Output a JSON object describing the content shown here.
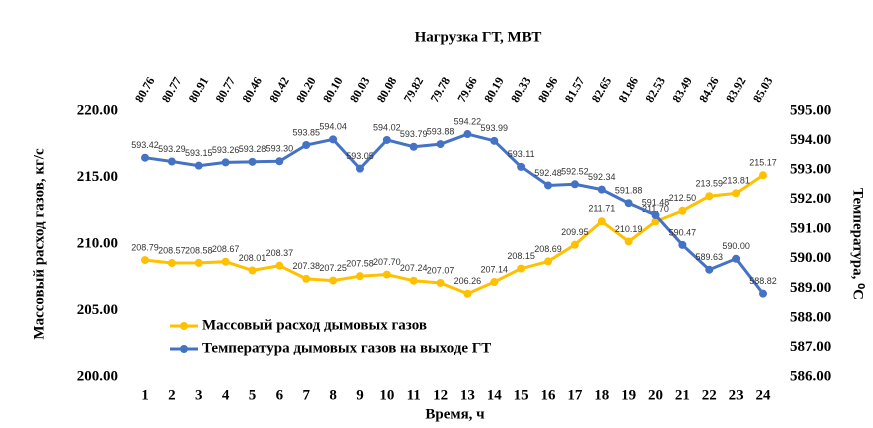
{
  "chart_data": {
    "type": "line",
    "title": "Нагрузка ГТ,  МВТ",
    "top_categories": [
      "80.76",
      "80.77",
      "80.91",
      "80.77",
      "80.46",
      "80.42",
      "80.20",
      "80.10",
      "80.03",
      "80.08",
      "79.82",
      "79.78",
      "79.66",
      "80.19",
      "80.33",
      "80.96",
      "81.57",
      "82.65",
      "81.86",
      "82.53",
      "83.49",
      "84.26",
      "83.92",
      "85.03"
    ],
    "categories": [
      "1",
      "2",
      "3",
      "4",
      "5",
      "6",
      "7",
      "8",
      "9",
      "10",
      "11",
      "12",
      "13",
      "14",
      "15",
      "16",
      "17",
      "18",
      "19",
      "20",
      "21",
      "22",
      "23",
      "24"
    ],
    "x_label": "Время, ч",
    "y_label": "Массовый расход газов, кг/с",
    "y2_label": "Температура, ⁰С",
    "ylim": [
      200,
      220
    ],
    "yticks": [
      {
        "value": 200,
        "label": "200.00"
      },
      {
        "value": 205,
        "label": "205.00"
      },
      {
        "value": 210,
        "label": "210.00"
      },
      {
        "value": 215,
        "label": "215.00"
      },
      {
        "value": 220,
        "label": "220.00"
      }
    ],
    "y2lim": [
      586,
      595
    ],
    "y2ticks": [
      {
        "value": 586,
        "label": "586.00"
      },
      {
        "value": 587,
        "label": "587.00"
      },
      {
        "value": 588,
        "label": "588.00"
      },
      {
        "value": 589,
        "label": "589.00"
      },
      {
        "value": 590,
        "label": "590.00"
      },
      {
        "value": 591,
        "label": "591.00"
      },
      {
        "value": 592,
        "label": "592.00"
      },
      {
        "value": 593,
        "label": "593.00"
      },
      {
        "value": 594,
        "label": "594.00"
      },
      {
        "value": 595,
        "label": "595.00"
      }
    ],
    "grid": false,
    "legend": "lower left",
    "series": [
      {
        "name": "Массовый расход дымовых газов",
        "color": "#ffc000",
        "values": [
          208.79,
          208.57,
          208.58,
          208.67,
          208.01,
          208.37,
          207.38,
          207.25,
          207.58,
          207.7,
          207.24,
          207.07,
          206.26,
          207.14,
          208.15,
          208.69,
          209.95,
          211.71,
          210.19,
          211.7,
          212.5,
          213.59,
          213.81,
          215.17
        ],
        "value_labels": [
          "208.79",
          "208.57",
          "208.58",
          "208.67",
          "208.01",
          "208.37",
          "207.38",
          "207.25",
          "207.58",
          "207.70",
          "207.24",
          "207.07",
          "206.26",
          "207.14",
          "208.15",
          "208.69",
          "209.95",
          "211.71",
          "210.19",
          "211.70",
          "212.50",
          "213.59",
          "213.81",
          "215.17"
        ]
      },
      {
        "name": "Температура  дымовых газов на выходе ГТ",
        "color": "#4472c4",
        "axis": "y2",
        "values": [
          593.42,
          593.29,
          593.15,
          593.26,
          593.28,
          593.3,
          593.85,
          594.04,
          593.05,
          594.02,
          593.79,
          593.88,
          594.22,
          593.99,
          593.11,
          592.48,
          592.52,
          592.34,
          591.88,
          591.48,
          590.47,
          589.63,
          590.0,
          588.82
        ],
        "value_labels": [
          "593.42",
          "593.29",
          "593.15",
          "593.26",
          "593.28",
          "593.30",
          "593.85",
          "594.04",
          "593.05",
          "594.02",
          "593.79",
          "593.88",
          "594.22",
          "593.99",
          "593.11",
          "592.48",
          "592.52",
          "592.34",
          "591.88",
          "591.48",
          "590.47",
          "589.63",
          "590.00",
          "588.82"
        ]
      }
    ]
  }
}
